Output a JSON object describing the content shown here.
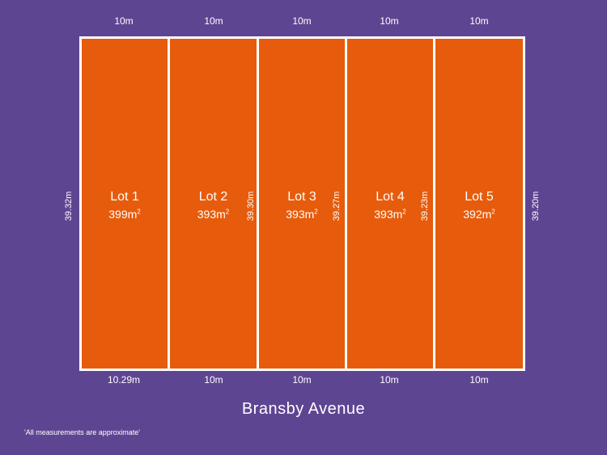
{
  "frontage_top": [
    "10m",
    "10m",
    "10m",
    "10m",
    "10m"
  ],
  "frontage_bottom": [
    "10.29m",
    "10m",
    "10m",
    "10m",
    "10m"
  ],
  "side_depths": [
    "39.32m",
    "39.30m",
    "39.27m",
    "39.23m",
    "39.20m"
  ],
  "lots": [
    {
      "name": "Lot 1",
      "area": "399m",
      "unit_sup": "2"
    },
    {
      "name": "Lot 2",
      "area": "393m",
      "unit_sup": "2"
    },
    {
      "name": "Lot 3",
      "area": "393m",
      "unit_sup": "2"
    },
    {
      "name": "Lot 4",
      "area": "393m",
      "unit_sup": "2"
    },
    {
      "name": "Lot 5",
      "area": "392m",
      "unit_sup": "2"
    }
  ],
  "street_name": "Bransby Avenue",
  "disclaimer": "'All measurements are approximate'",
  "colors": {
    "background": "#5e4592",
    "lot_fill": "#e65c0c",
    "line": "#ffffff"
  }
}
